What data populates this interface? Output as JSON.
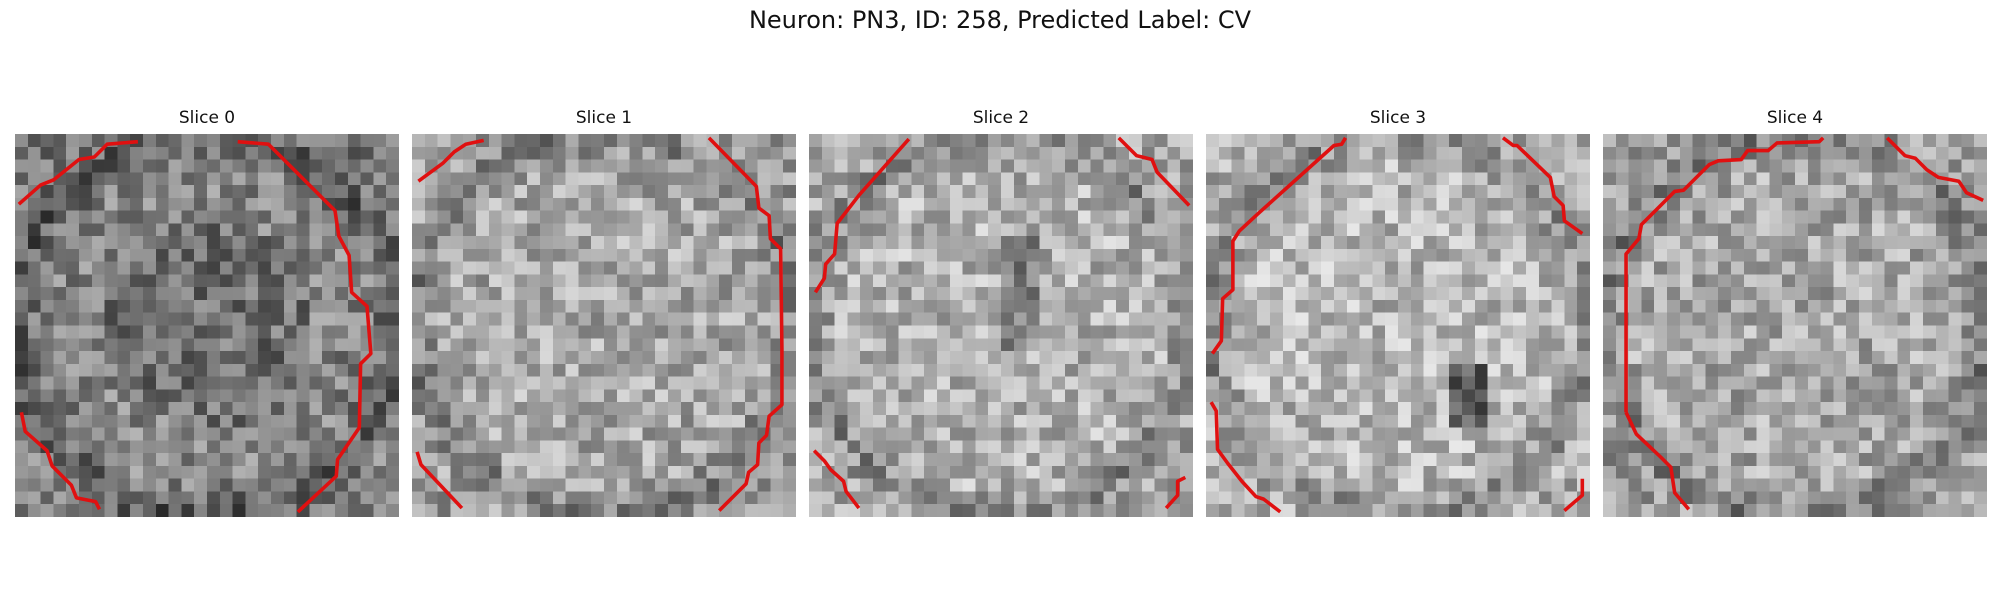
{
  "figure": {
    "title": "Neuron: PN3, ID: 258, Predicted Label: CV"
  },
  "slices": [
    {
      "title": "Slice 0",
      "seed": 11,
      "brightness": 0.52
    },
    {
      "title": "Slice 1",
      "seed": 23,
      "brightness": 0.66
    },
    {
      "title": "Slice 2",
      "seed": 37,
      "brightness": 0.7
    },
    {
      "title": "Slice 3",
      "seed": 41,
      "brightness": 0.72
    },
    {
      "title": "Slice 4",
      "seed": 59,
      "brightness": 0.66
    }
  ],
  "colors": {
    "contour": "#e01010",
    "background": "#ffffff"
  }
}
